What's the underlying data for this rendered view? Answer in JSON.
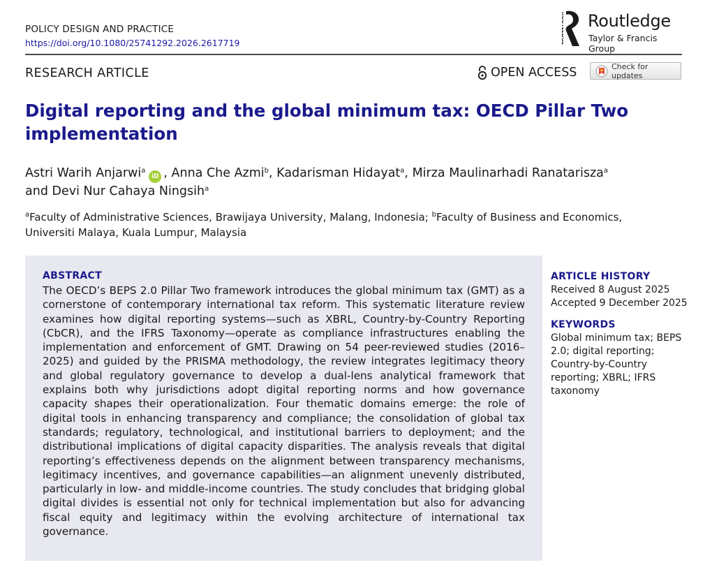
{
  "journal": {
    "name": "POLICY DESIGN AND PRACTICE",
    "doi": "https://doi.org/10.1080/25741292.2026.2617719"
  },
  "publisher": {
    "vertical_word": "ROUTLEDGE",
    "name": "Routledge",
    "group": "Taylor & Francis Group"
  },
  "article": {
    "type": "RESEARCH ARTICLE",
    "open_access": "OPEN ACCESS",
    "check_updates": "Check for updates",
    "title": "Digital reporting and the global minimum tax: OECD Pillar Two implementation"
  },
  "authors": [
    {
      "name": "Astri Warih Anjarwi",
      "sup": "a",
      "orcid": true
    },
    {
      "name": "Anna Che Azmi",
      "sup": "b"
    },
    {
      "name": "Kadarisman Hidayat",
      "sup": "a"
    },
    {
      "name": "Mirza Maulinarhadi Ranatarisza",
      "sup": "a"
    },
    {
      "name": "Devi Nur Cahaya Ningsih",
      "sup": "a"
    }
  ],
  "author_labels": {
    "orcid": "iD",
    "and": "and"
  },
  "affiliations": [
    {
      "sup": "a",
      "text": "Faculty of Administrative Sciences, Brawijaya University, Malang, Indonesia;"
    },
    {
      "sup": "b",
      "text": "Faculty of Business and Economics, Universiti Malaya, Kuala Lumpur, Malaysia"
    }
  ],
  "abstract": {
    "heading": "ABSTRACT",
    "text": "The OECD’s BEPS 2.0 Pillar Two framework introduces the global minimum tax (GMT) as a cornerstone of contemporary international tax reform. This systematic literature review examines how digital reporting systems—such as XBRL, Country-by-Country Reporting (CbCR), and the IFRS Taxonomy—operate as compliance infrastructures enabling the implementation and enforcement of GMT. Drawing on 54 peer-reviewed studies (2016–2025) and guided by the PRISMA methodology, the review integrates legitimacy theory and global regulatory governance to develop a dual-lens analytical framework that explains both why jurisdictions adopt digital reporting norms and how governance capacity shapes their operationalization. Four thematic domains emerge: the role of digital tools in enhancing transparency and compliance; the consolidation of global tax standards; regulatory, technological, and institutional barriers to deployment; and the distributional implications of digital capacity disparities. The analysis reveals that digital reporting’s effectiveness depends on the alignment between transparency mechanisms, legitimacy incentives, and governance capabilities—an alignment unevenly distributed, particularly in low- and middle-income countries. The study concludes that bridging global digital divides is essential not only for technical implementation but also for advancing fiscal equity and legitimacy within the evolving architecture of international tax governance."
  },
  "history": {
    "heading": "ARTICLE HISTORY",
    "received": "Received 8 August 2025",
    "accepted": "Accepted 9 December 2025"
  },
  "keywords": {
    "heading": "KEYWORDS",
    "text": "Global minimum tax; BEPS 2.0; digital reporting; Country-by-Country reporting; XBRL; IFRS taxonomy"
  },
  "colors": {
    "title": "#1a1a8c",
    "link": "#1a1aa6",
    "abstract_bg": "#e8e8f0",
    "orcid": "#a6ce39"
  }
}
